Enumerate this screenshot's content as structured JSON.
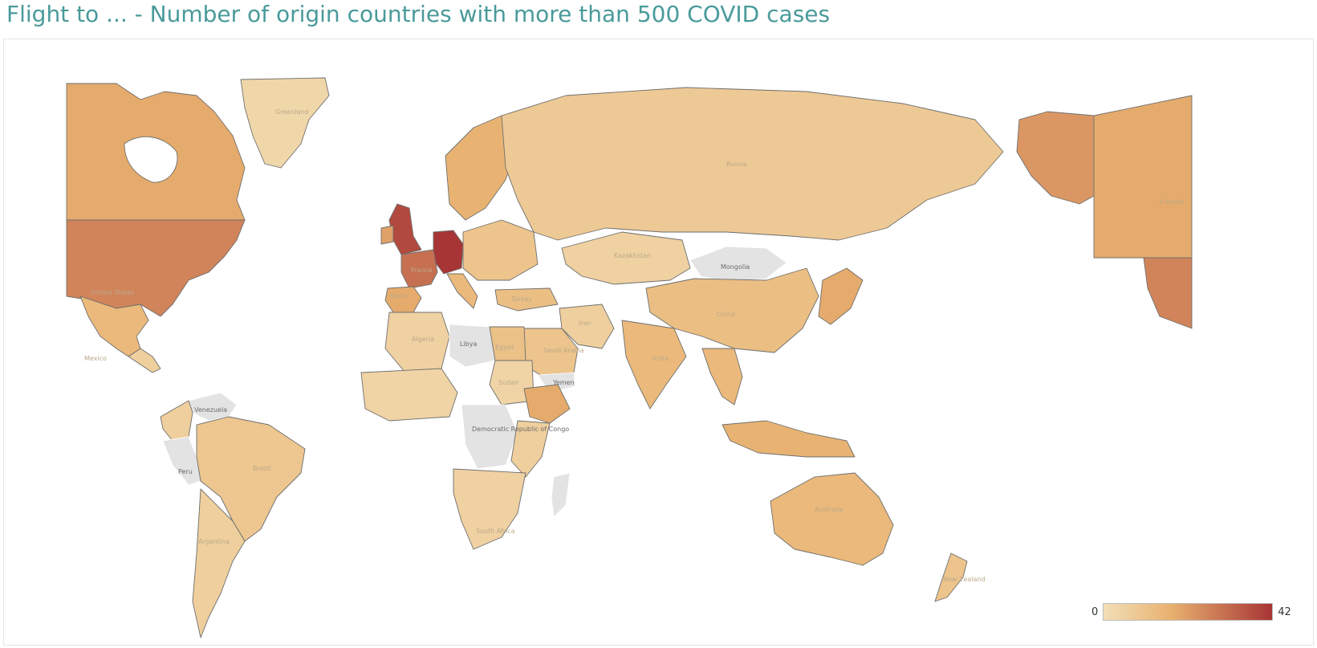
{
  "title": "Flight to ... - Number of origin countries with more than 500 COVID cases",
  "legend": {
    "min": "0",
    "max": "42",
    "color_low": "#f2dfb7",
    "color_mid": "#e8b16f",
    "color_high": "#a83535"
  },
  "colors": {
    "title": "#4a9a9a",
    "no_data": "#e3e3e3"
  },
  "labels": {
    "greenland": "Greenland",
    "russia": "Russia",
    "mongolia": "Mongolia",
    "kazakhstan": "Kazakhstan",
    "libya": "Libya",
    "yemen": "Yemen",
    "venezuela": "Venezuela",
    "drc": "Democratic Republic of Congo",
    "peru": "Peru",
    "brazil": "Brazil",
    "argentina": "Argentina",
    "algeria": "Algeria",
    "egypt": "Egypt",
    "sudan": "Sudan",
    "saudi": "Saudi Arabia",
    "iran": "Iran",
    "india": "India",
    "china": "China",
    "turkey": "Turkey",
    "australia": "Australia",
    "nz": "New Zealand",
    "south_africa": "South Africa",
    "us": "United States",
    "mexico": "Mexico",
    "france": "France",
    "spain": "Spain",
    "canada": "Canada"
  },
  "map_data": [
    {
      "name": "Canada",
      "value": 18
    },
    {
      "name": "United States",
      "value": 26
    },
    {
      "name": "Mexico",
      "value": 14
    },
    {
      "name": "Greenland",
      "value": 3
    },
    {
      "name": "Brazil",
      "value": 9
    },
    {
      "name": "Argentina",
      "value": 6
    },
    {
      "name": "Peru",
      "value": null
    },
    {
      "name": "Venezuela",
      "value": null
    },
    {
      "name": "United Kingdom",
      "value": 38
    },
    {
      "name": "Germany",
      "value": 42
    },
    {
      "name": "France",
      "value": 30
    },
    {
      "name": "Spain",
      "value": 18
    },
    {
      "name": "Russia",
      "value": 8
    },
    {
      "name": "Mongolia",
      "value": null
    },
    {
      "name": "Kazakhstan",
      "value": 5
    },
    {
      "name": "China",
      "value": 12
    },
    {
      "name": "India",
      "value": 14
    },
    {
      "name": "Iran",
      "value": 6
    },
    {
      "name": "Saudi Arabia",
      "value": 10
    },
    {
      "name": "Turkey",
      "value": 12
    },
    {
      "name": "Egypt",
      "value": 11
    },
    {
      "name": "Libya",
      "value": null
    },
    {
      "name": "Algeria",
      "value": 5
    },
    {
      "name": "Sudan",
      "value": 4
    },
    {
      "name": "Ethiopia",
      "value": 18
    },
    {
      "name": "Democratic Republic of Congo",
      "value": null
    },
    {
      "name": "Yemen",
      "value": null
    },
    {
      "name": "South Africa",
      "value": 6
    },
    {
      "name": "Australia",
      "value": 14
    },
    {
      "name": "New Zealand",
      "value": 10
    },
    {
      "name": "Japan",
      "value": 18
    },
    {
      "name": "Indonesia",
      "value": 16
    },
    {
      "name": "Thailand",
      "value": 18
    }
  ]
}
